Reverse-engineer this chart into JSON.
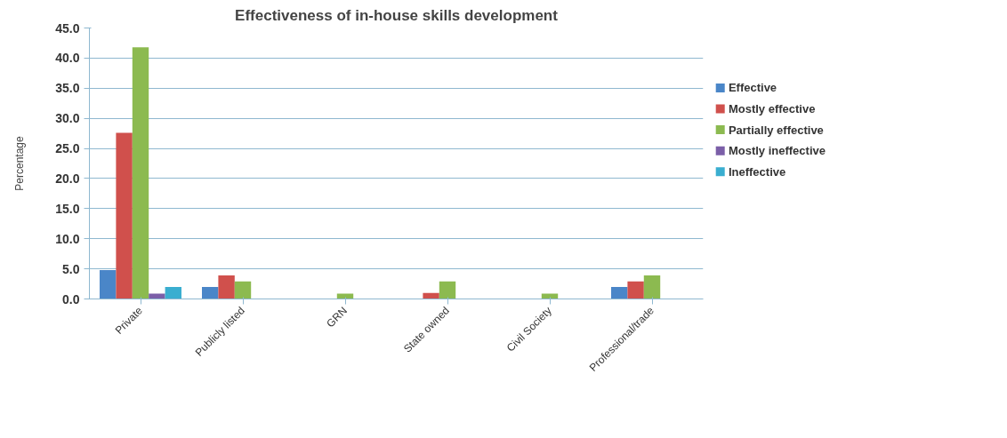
{
  "chart_data": {
    "type": "bar",
    "title": "Effectiveness of in-house skills development",
    "ylabel": "Percentage",
    "categories": [
      "Private",
      "Publicly listed",
      "GRN",
      "State owned",
      "Civil Society",
      "Professional/trade"
    ],
    "series": [
      {
        "name": "Effective",
        "color": "#4a86c8",
        "values": [
          4.8,
          2.0,
          0,
          0,
          0,
          2.0
        ]
      },
      {
        "name": "Mostly effective",
        "color": "#d0504c",
        "values": [
          27.6,
          3.9,
          0,
          1.0,
          0,
          2.9
        ]
      },
      {
        "name": "Partially effective",
        "color": "#8cba50",
        "values": [
          41.8,
          2.9,
          0.9,
          2.9,
          0.9,
          3.9
        ]
      },
      {
        "name": "Mostly ineffective",
        "color": "#7b5fa8",
        "values": [
          0.9,
          0,
          0,
          0,
          0,
          0
        ]
      },
      {
        "name": "Ineffective",
        "color": "#3aaed0",
        "values": [
          2.0,
          0,
          0,
          0,
          0,
          0
        ]
      }
    ],
    "ylim": [
      0,
      45
    ],
    "yticks": [
      {
        "value": 0,
        "label": "0.0"
      },
      {
        "value": 5,
        "label": "5.0"
      },
      {
        "value": 10,
        "label": "10.0"
      },
      {
        "value": 15,
        "label": "15.0"
      },
      {
        "value": 20,
        "label": "20.0"
      },
      {
        "value": 25,
        "label": "25.0"
      },
      {
        "value": 30,
        "label": "30.0"
      },
      {
        "value": 35,
        "label": "35.0"
      },
      {
        "value": 40,
        "label": "40.0"
      },
      {
        "value": 45,
        "label": "45.0"
      }
    ],
    "grid": "y",
    "legend": "right"
  }
}
